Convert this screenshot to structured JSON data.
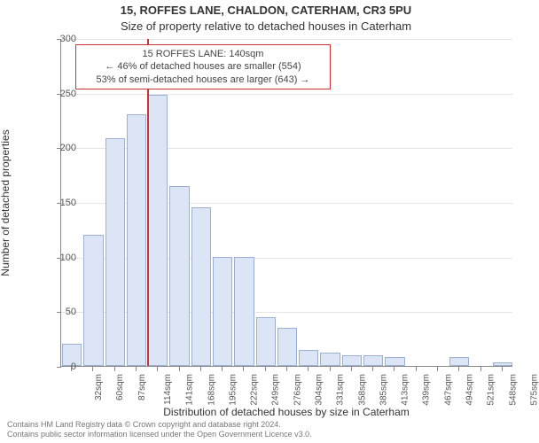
{
  "title_main": "15, ROFFES LANE, CHALDON, CATERHAM, CR3 5PU",
  "title_sub": "Size of property relative to detached houses in Caterham",
  "ylabel": "Number of detached properties",
  "xlabel": "Distribution of detached houses by size in Caterham",
  "footer_line1": "Contains HM Land Registry data © Crown copyright and database right 2024.",
  "footer_line2": "Contains public sector information licensed under the Open Government Licence v3.0.",
  "chart": {
    "type": "histogram",
    "background_color": "#ffffff",
    "grid_color": "#e5e5e5",
    "axis_color": "#888888",
    "bar_fill": "#dbe5f5",
    "bar_border": "#9cb0d2",
    "marker_color": "#cc3333",
    "ylim": [
      0,
      300
    ],
    "yticks": [
      0,
      50,
      100,
      150,
      200,
      250,
      300
    ],
    "bar_width": 0.92,
    "title_fontsize": 13,
    "label_fontsize": 12,
    "tick_fontsize": 11,
    "xtick_fontsize": 10,
    "xticks": [
      "32sqm",
      "60sqm",
      "87sqm",
      "114sqm",
      "141sqm",
      "168sqm",
      "195sqm",
      "222sqm",
      "249sqm",
      "276sqm",
      "304sqm",
      "331sqm",
      "358sqm",
      "385sqm",
      "413sqm",
      "439sqm",
      "467sqm",
      "494sqm",
      "521sqm",
      "548sqm",
      "575sqm"
    ],
    "values": [
      20,
      120,
      208,
      230,
      248,
      165,
      145,
      100,
      100,
      45,
      35,
      15,
      12,
      10,
      10,
      8,
      0,
      0,
      8,
      0,
      3
    ],
    "marker_index": 4,
    "marker_offset": -0.02
  },
  "callout": {
    "line1": "15 ROFFES LANE: 140sqm",
    "line2": "← 46% of detached houses are smaller (554)",
    "line3": "53% of semi-detached houses are larger (643) →"
  }
}
